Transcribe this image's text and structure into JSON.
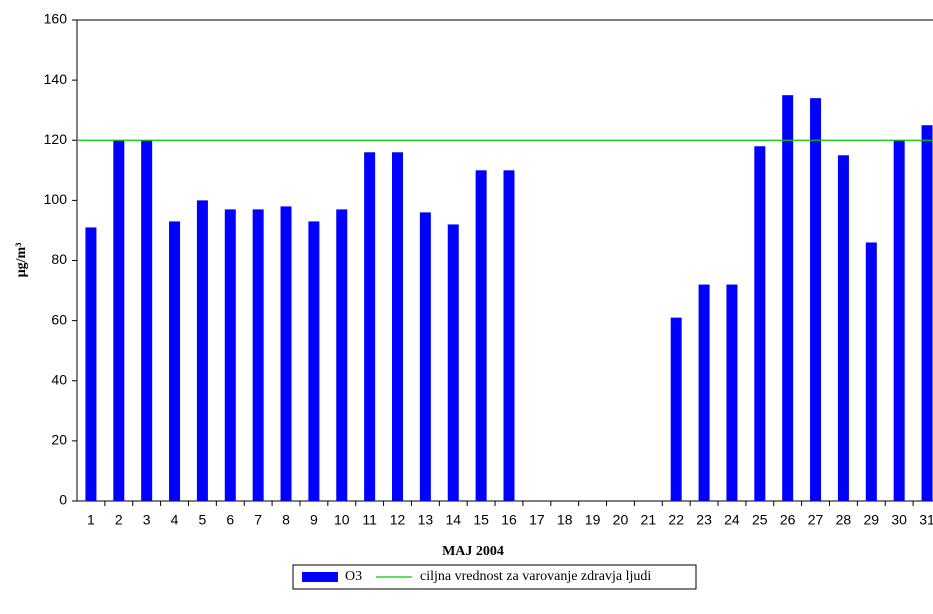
{
  "chart_data": {
    "type": "bar",
    "categories": [
      "1",
      "2",
      "3",
      "4",
      "5",
      "6",
      "7",
      "8",
      "9",
      "10",
      "11",
      "12",
      "13",
      "14",
      "15",
      "16",
      "17",
      "18",
      "19",
      "20",
      "21",
      "22",
      "23",
      "24",
      "25",
      "26",
      "27",
      "28",
      "29",
      "30",
      "31"
    ],
    "series": [
      {
        "name": "O3",
        "color": "#0000ff",
        "values": [
          91,
          120,
          120,
          93,
          100,
          97,
          97,
          98,
          93,
          97,
          116,
          116,
          96,
          92,
          110,
          110,
          null,
          null,
          null,
          null,
          null,
          61,
          72,
          72,
          118,
          135,
          134,
          115,
          86,
          120,
          125
        ]
      }
    ],
    "reference_line": {
      "name": "ciljna vrednost za varovanje zdravja ljudi",
      "value": 120,
      "color": "#00cc00"
    },
    "x_label": "MAJ 2004",
    "y_label": "µg/m³",
    "ylim": [
      0,
      160
    ],
    "yticks": [
      0,
      20,
      40,
      60,
      80,
      100,
      120,
      140,
      160
    ]
  }
}
